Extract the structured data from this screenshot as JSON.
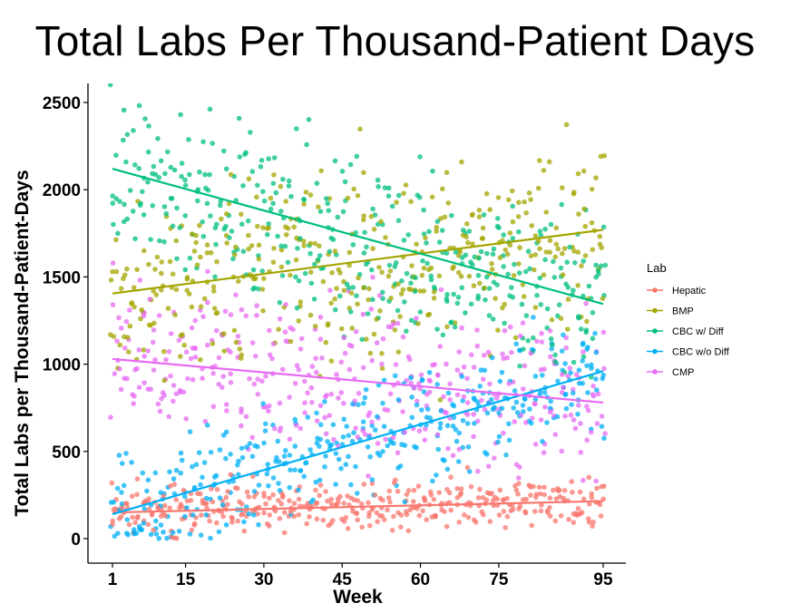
{
  "chart_data": {
    "type": "scatter",
    "title": "Total Labs Per Thousand-Patient Days",
    "xlabel": "Week",
    "ylabel": "Total Labs per Thousand-Patient-Days",
    "xlim": [
      1,
      95
    ],
    "ylim": [
      0,
      2500
    ],
    "x_ticks": [
      1,
      15,
      30,
      45,
      60,
      75,
      95
    ],
    "y_ticks": [
      0,
      500,
      1000,
      1500,
      2000,
      2500
    ],
    "grid": false,
    "legend": {
      "title": "Lab",
      "position": "right"
    },
    "series": [
      {
        "name": "Hepatic",
        "color": "#f8766d",
        "trend": {
          "start": 150,
          "end": 215
        },
        "scatter": {
          "center_start": 150,
          "center_end": 215,
          "spread": 115,
          "floor": 0,
          "ceiling": 560
        }
      },
      {
        "name": "BMP",
        "color": "#a3a500",
        "trend": {
          "start": 1405,
          "end": 1770
        },
        "scatter": {
          "center_start": 1405,
          "center_end": 1770,
          "spread": 450,
          "floor": 650,
          "ceiling": 2650
        }
      },
      {
        "name": "CBC w/ Diff",
        "color": "#00bf7d",
        "trend": {
          "start": 2120,
          "end": 1345
        },
        "scatter": {
          "center_start": 2120,
          "center_end": 1345,
          "spread": 420,
          "floor": 700,
          "ceiling": 2650
        }
      },
      {
        "name": "CBC w/o Diff",
        "color": "#00b0f6",
        "trend": {
          "start": 140,
          "end": 960
        },
        "scatter": {
          "center_start": 140,
          "center_end": 960,
          "spread": 260,
          "floor": 0,
          "ceiling": 1300
        }
      },
      {
        "name": "CMP",
        "color": "#e76bf3",
        "trend": {
          "start": 1030,
          "end": 780
        },
        "scatter": {
          "center_start": 1030,
          "center_end": 780,
          "spread": 380,
          "floor": 300,
          "ceiling": 1950
        }
      }
    ]
  }
}
